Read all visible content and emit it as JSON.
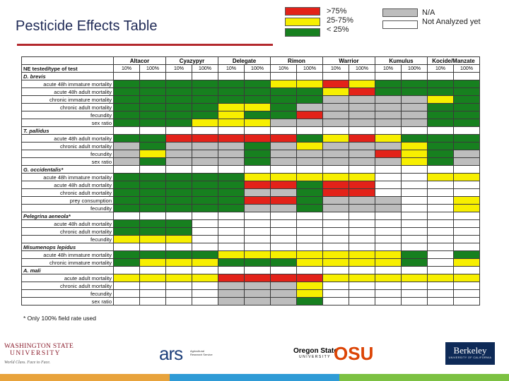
{
  "title": "Pesticide Effects Table",
  "legend": {
    "items_left": [
      ">75%",
      "25-75%",
      "< 25%"
    ],
    "items_right": [
      "N/A",
      "Not Analyzed yet"
    ],
    "colors": {
      "high": "#e32219",
      "mid": "#f7ef00",
      "low": "#17801f",
      "na": "#bdbdbd",
      "not_analyzed": "#ffffff"
    }
  },
  "table": {
    "header_label": "NE tested/type of test",
    "products": [
      "Altacor",
      "Cyazypyr",
      "Delegate",
      "Rimon",
      "Warrior",
      "Kumulus",
      "Kocide/Manzate"
    ],
    "rates": [
      "10%",
      "100%"
    ],
    "rows": [
      {
        "type": "species",
        "label": "D. brevis",
        "cells": "wwwwwwwwwwwwww"
      },
      {
        "type": "test",
        "label": "acute 48h immature mortality",
        "cells": "ggggggyyrygggg"
      },
      {
        "type": "test",
        "label": "acute 48h adult mortality",
        "cells": "ggggggggyrgggg"
      },
      {
        "type": "test",
        "label": "chronic immature mortality",
        "cells": "ggggggggssssyg"
      },
      {
        "type": "test",
        "label": "chronic adult mortality",
        "cells": "ggggyygsssssgg"
      },
      {
        "type": "test",
        "label": "fecundity",
        "cells": "ggggyggrssssgg"
      },
      {
        "type": "test",
        "label": "sex ratio",
        "cells": "gggyyyssssssgg"
      },
      {
        "type": "species",
        "label": "T. pallidus",
        "cells": "wwwwwwwwwwwwww"
      },
      {
        "type": "test",
        "label": "acute 48h adult mortality",
        "cells": "ggrrrrrgyryggg"
      },
      {
        "type": "test",
        "label": "chronic adult mortality",
        "cells": "sgsssgsysssyg g"
      },
      {
        "type": "test",
        "label": "fecundity",
        "cells": "sysssgssssrygs"
      },
      {
        "type": "test",
        "label": "sex ratio",
        "cells": "sgsssgsssssygs"
      },
      {
        "type": "species",
        "label": "G. occidentalis*",
        "cells": "wwwwwwwwwwwwww"
      },
      {
        "type": "test",
        "label": "acute 48h immature mortality",
        "cells": "gggggyyyyywwyy"
      },
      {
        "type": "test",
        "label": "acute 48h adult mortality",
        "cells": "gggggrrgrrwwww"
      },
      {
        "type": "test",
        "label": "chronic adult mortality",
        "cells": "gggggssgrrwwww"
      },
      {
        "type": "test",
        "label": "prey consumption",
        "cells": "gggggrrgssswwy"
      },
      {
        "type": "test",
        "label": "fecundity",
        "cells": "gggggssgssswwy"
      },
      {
        "type": "species",
        "label": "Pelegrina aeneola*",
        "cells": "wwwwwwwwwwwwww"
      },
      {
        "type": "test",
        "label": "acute 48h adult mortality",
        "cells": "gggwwwwwwwwwww"
      },
      {
        "type": "test",
        "label": "chronic adult mortality",
        "cells": "gggwwwwwwwwwww"
      },
      {
        "type": "test",
        "label": "fecundity",
        "cells": "yyywwwwwwwwwww"
      },
      {
        "type": "species",
        "label": "Misumenops lepidus",
        "cells": "wwwwwwwwwwwwww"
      },
      {
        "type": "test",
        "label": "acute 48h immature mortality",
        "cells": "ggggyyyyyyygwg"
      },
      {
        "type": "test",
        "label": "chronic immature mortality",
        "cells": "gyyygggyyyygwy"
      },
      {
        "type": "species",
        "label": "A. mali",
        "cells": "wwwwwwwwwwwwww"
      },
      {
        "type": "test",
        "label": "acute adult mortality",
        "cells": "yyyyrrrryyyyyy"
      },
      {
        "type": "test",
        "label": "chronic adult mortality",
        "cells": "wwwwsssywwwwww"
      },
      {
        "type": "test",
        "label": "fecundity",
        "cells": "wwwwsssywwwwww"
      },
      {
        "type": "test",
        "label": "sex ratio",
        "cells": "wwwwsssgwwwwww"
      }
    ]
  },
  "note": "* Only 100% field rate used",
  "logos": {
    "wsu_top": "WASHINGTON STATE",
    "wsu_bottom": "UNIVERSITY",
    "wsu_tag": "World Class. Face to Face.",
    "ars": "ars",
    "ars_sub": "Agricultural Research Service",
    "oregon_state": "Oregon State",
    "oregon_univ": "UNIVERSITY",
    "osu": "OSU",
    "berkeley": "Berkeley",
    "berkeley_sub": "UNIVERSITY OF CALIFORNIA"
  }
}
